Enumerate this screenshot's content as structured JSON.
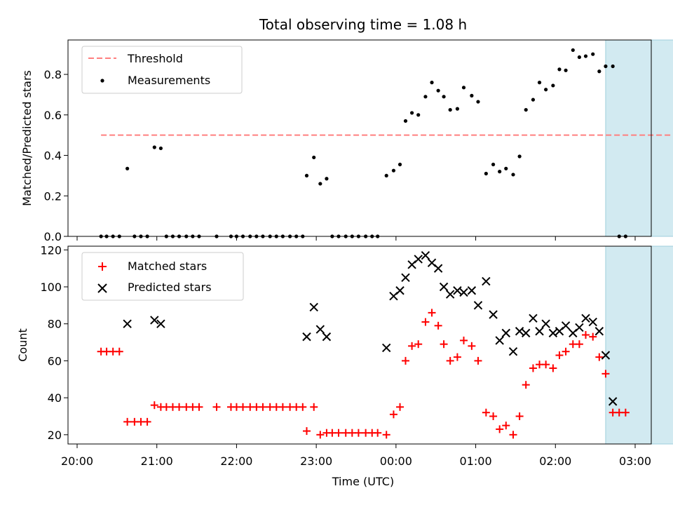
{
  "chart_data": [
    {
      "type": "scatter",
      "title": "Total observing time = 1.08 h",
      "xlabel": "",
      "ylabel": "Matched/Predicted stars",
      "ylim": [
        0,
        0.97
      ],
      "yticks": [
        "0.0",
        "0.2",
        "0.4",
        "0.6",
        "0.8"
      ],
      "ytick_values": [
        0,
        0.2,
        0.4,
        0.6,
        0.8
      ],
      "shaded_region": {
        "x_start": 26.63,
        "x_end": 27.7,
        "color": "#add8e6"
      },
      "threshold": {
        "name": "Threshold",
        "value": 0.5,
        "x_start": 20.3,
        "x_end": 27.87,
        "color": "#ff7f7f"
      },
      "legend_placement": "upper-left",
      "series": [
        {
          "name": "Measurements",
          "color": "#000000",
          "marker": "dot",
          "points": [
            [
              20.3,
              0
            ],
            [
              20.37,
              0
            ],
            [
              20.45,
              0
            ],
            [
              20.53,
              0
            ],
            [
              20.63,
              0.335
            ],
            [
              20.72,
              0
            ],
            [
              20.8,
              0
            ],
            [
              20.88,
              0
            ],
            [
              20.97,
              0.44
            ],
            [
              21.05,
              0.435
            ],
            [
              21.12,
              0
            ],
            [
              21.2,
              0
            ],
            [
              21.28,
              0
            ],
            [
              21.37,
              0
            ],
            [
              21.45,
              0
            ],
            [
              21.53,
              0
            ],
            [
              21.75,
              0
            ],
            [
              21.93,
              0
            ],
            [
              22.0,
              0
            ],
            [
              22.08,
              0
            ],
            [
              22.17,
              0
            ],
            [
              22.25,
              0
            ],
            [
              22.33,
              0
            ],
            [
              22.42,
              0
            ],
            [
              22.5,
              0
            ],
            [
              22.58,
              0
            ],
            [
              22.67,
              0
            ],
            [
              22.75,
              0
            ],
            [
              22.83,
              0
            ],
            [
              22.88,
              0.3
            ],
            [
              22.97,
              0.39
            ],
            [
              23.05,
              0.26
            ],
            [
              23.13,
              0.285
            ],
            [
              23.2,
              0
            ],
            [
              23.28,
              0
            ],
            [
              23.37,
              0
            ],
            [
              23.45,
              0
            ],
            [
              23.53,
              0
            ],
            [
              23.62,
              0
            ],
            [
              23.7,
              0
            ],
            [
              23.77,
              0
            ],
            [
              23.88,
              0.3
            ],
            [
              23.97,
              0.325
            ],
            [
              24.05,
              0.355
            ],
            [
              24.12,
              0.57
            ],
            [
              24.2,
              0.61
            ],
            [
              24.28,
              0.6
            ],
            [
              24.37,
              0.69
            ],
            [
              24.45,
              0.76
            ],
            [
              24.53,
              0.72
            ],
            [
              24.6,
              0.69
            ],
            [
              24.68,
              0.625
            ],
            [
              24.77,
              0.63
            ],
            [
              24.85,
              0.735
            ],
            [
              24.95,
              0.695
            ],
            [
              25.03,
              0.665
            ],
            [
              25.13,
              0.31
            ],
            [
              25.22,
              0.355
            ],
            [
              25.3,
              0.32
            ],
            [
              25.38,
              0.335
            ],
            [
              25.47,
              0.305
            ],
            [
              25.55,
              0.395
            ],
            [
              25.63,
              0.625
            ],
            [
              25.72,
              0.675
            ],
            [
              25.8,
              0.76
            ],
            [
              25.88,
              0.725
            ],
            [
              25.97,
              0.745
            ],
            [
              26.05,
              0.825
            ],
            [
              26.13,
              0.82
            ],
            [
              26.22,
              0.92
            ],
            [
              26.3,
              0.885
            ],
            [
              26.38,
              0.89
            ],
            [
              26.47,
              0.9
            ],
            [
              26.55,
              0.815
            ],
            [
              26.63,
              0.84
            ],
            [
              26.72,
              0.84
            ],
            [
              26.8,
              0
            ],
            [
              26.88,
              0
            ]
          ]
        }
      ]
    },
    {
      "type": "scatter",
      "title": "",
      "xlabel": "Time (UTC)",
      "ylabel": "Count",
      "ylim": [
        15,
        122
      ],
      "yticks": [
        "20",
        "40",
        "60",
        "80",
        "100",
        "120"
      ],
      "ytick_values": [
        20,
        40,
        60,
        80,
        100,
        120
      ],
      "xticks": [
        "20:00",
        "21:00",
        "22:00",
        "23:00",
        "00:00",
        "01:00",
        "02:00",
        "03:00"
      ],
      "xtick_values": [
        20,
        21,
        22,
        23,
        24,
        25,
        26,
        27
      ],
      "shaded_region": {
        "x_start": 26.63,
        "x_end": 27.7,
        "color": "#add8e6"
      },
      "legend_placement": "upper-left",
      "series": [
        {
          "name": "Matched stars",
          "color": "#ff0000",
          "marker": "plus",
          "points": [
            [
              20.3,
              65
            ],
            [
              20.37,
              65
            ],
            [
              20.45,
              65
            ],
            [
              20.53,
              65
            ],
            [
              20.63,
              27
            ],
            [
              20.72,
              27
            ],
            [
              20.8,
              27
            ],
            [
              20.88,
              27
            ],
            [
              20.97,
              36
            ],
            [
              21.05,
              35
            ],
            [
              21.12,
              35
            ],
            [
              21.2,
              35
            ],
            [
              21.28,
              35
            ],
            [
              21.37,
              35
            ],
            [
              21.45,
              35
            ],
            [
              21.53,
              35
            ],
            [
              21.75,
              35
            ],
            [
              21.93,
              35
            ],
            [
              22.0,
              35
            ],
            [
              22.08,
              35
            ],
            [
              22.17,
              35
            ],
            [
              22.25,
              35
            ],
            [
              22.33,
              35
            ],
            [
              22.42,
              35
            ],
            [
              22.5,
              35
            ],
            [
              22.58,
              35
            ],
            [
              22.67,
              35
            ],
            [
              22.75,
              35
            ],
            [
              22.83,
              35
            ],
            [
              22.88,
              22
            ],
            [
              22.97,
              35
            ],
            [
              23.05,
              20
            ],
            [
              23.13,
              21
            ],
            [
              23.2,
              21
            ],
            [
              23.28,
              21
            ],
            [
              23.37,
              21
            ],
            [
              23.45,
              21
            ],
            [
              23.53,
              21
            ],
            [
              23.62,
              21
            ],
            [
              23.7,
              21
            ],
            [
              23.77,
              21
            ],
            [
              23.88,
              20
            ],
            [
              23.97,
              31
            ],
            [
              24.05,
              35
            ],
            [
              24.12,
              60
            ],
            [
              24.2,
              68
            ],
            [
              24.28,
              69
            ],
            [
              24.37,
              81
            ],
            [
              24.45,
              86
            ],
            [
              24.53,
              79
            ],
            [
              24.6,
              69
            ],
            [
              24.68,
              60
            ],
            [
              24.77,
              62
            ],
            [
              24.85,
              71
            ],
            [
              24.95,
              68
            ],
            [
              25.03,
              60
            ],
            [
              25.13,
              32
            ],
            [
              25.22,
              30
            ],
            [
              25.3,
              23
            ],
            [
              25.38,
              25
            ],
            [
              25.47,
              20
            ],
            [
              25.55,
              30
            ],
            [
              25.63,
              47
            ],
            [
              25.72,
              56
            ],
            [
              25.8,
              58
            ],
            [
              25.88,
              58
            ],
            [
              25.97,
              56
            ],
            [
              26.05,
              63
            ],
            [
              26.13,
              65
            ],
            [
              26.22,
              69
            ],
            [
              26.3,
              69
            ],
            [
              26.38,
              74
            ],
            [
              26.47,
              73
            ],
            [
              26.55,
              62
            ],
            [
              26.63,
              53
            ],
            [
              26.72,
              32
            ],
            [
              26.8,
              32
            ],
            [
              26.88,
              32
            ]
          ]
        },
        {
          "name": "Predicted stars",
          "color": "#000000",
          "marker": "x",
          "points": [
            [
              20.63,
              80
            ],
            [
              20.97,
              82
            ],
            [
              21.05,
              80
            ],
            [
              22.88,
              73
            ],
            [
              22.97,
              89
            ],
            [
              23.05,
              77
            ],
            [
              23.13,
              73
            ],
            [
              23.88,
              67
            ],
            [
              23.97,
              95
            ],
            [
              24.05,
              98
            ],
            [
              24.12,
              105
            ],
            [
              24.2,
              112
            ],
            [
              24.28,
              115
            ],
            [
              24.37,
              117
            ],
            [
              24.45,
              113
            ],
            [
              24.53,
              110
            ],
            [
              24.6,
              100
            ],
            [
              24.68,
              96
            ],
            [
              24.77,
              98
            ],
            [
              24.85,
              97
            ],
            [
              24.95,
              98
            ],
            [
              25.03,
              90
            ],
            [
              25.13,
              103
            ],
            [
              25.22,
              85
            ],
            [
              25.3,
              71
            ],
            [
              25.38,
              75
            ],
            [
              25.47,
              65
            ],
            [
              25.55,
              76
            ],
            [
              25.63,
              75
            ],
            [
              25.72,
              83
            ],
            [
              25.8,
              76
            ],
            [
              25.88,
              80
            ],
            [
              25.97,
              75
            ],
            [
              26.05,
              76
            ],
            [
              26.13,
              79
            ],
            [
              26.22,
              75
            ],
            [
              26.3,
              78
            ],
            [
              26.38,
              83
            ],
            [
              26.47,
              81
            ],
            [
              26.55,
              76
            ],
            [
              26.63,
              63
            ],
            [
              26.72,
              38
            ]
          ]
        }
      ]
    }
  ]
}
